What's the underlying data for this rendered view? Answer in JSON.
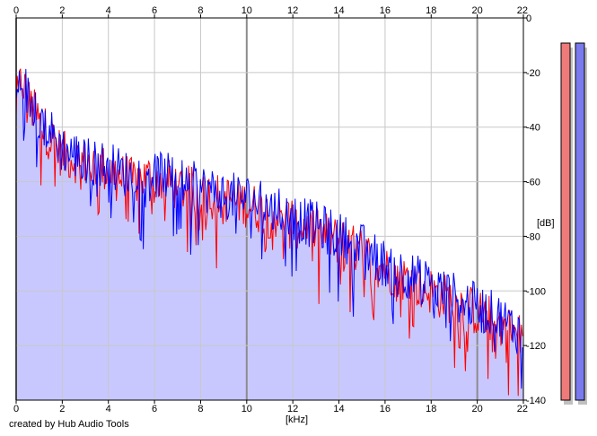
{
  "footer_text": "created by Hub Audio Tools",
  "colors": {
    "background": "#ffffff",
    "fill": "#c8c8ff",
    "left_channel": "#ff0000",
    "right_channel": "#0000ff",
    "grid_major": "#8c8c8c",
    "grid_minor": "#c8c8c8",
    "meter_left": "#ee7a7a",
    "meter_right": "#7a7aee"
  },
  "chart_data": {
    "type": "line",
    "title": "",
    "xlabel": "[kHz]",
    "ylabel": "[dB]",
    "xlim": [
      0,
      22
    ],
    "ylim": [
      -140,
      0
    ],
    "x_ticks": [
      0,
      2,
      4,
      6,
      8,
      10,
      12,
      14,
      16,
      18,
      20,
      22
    ],
    "y_ticks": [
      0,
      -20,
      -40,
      -60,
      -80,
      -100,
      -120,
      -140
    ],
    "x_tick_labels": [
      "0",
      "2",
      "4",
      "6",
      "8",
      "10",
      "12",
      "14",
      "16",
      "18",
      "20",
      "22"
    ],
    "y_tick_labels": [
      "0",
      "-20",
      "-40",
      "-60",
      "-80",
      "-100",
      "-120",
      "-140"
    ],
    "grid": true,
    "x": [
      0,
      0.25,
      0.5,
      1,
      1.5,
      2,
      3,
      4,
      5,
      6,
      7,
      8,
      9,
      10,
      11,
      12,
      13,
      14,
      15,
      16,
      17,
      18,
      19,
      20,
      21,
      22
    ],
    "series": [
      {
        "values": [
          -32,
          -22,
          -30,
          -38,
          -44,
          -50,
          -53,
          -56,
          -60,
          -58,
          -62,
          -64,
          -66,
          -68,
          -72,
          -74,
          -78,
          -82,
          -86,
          -92,
          -96,
          -100,
          -104,
          -108,
          -112,
          -118
        ]
      },
      {
        "values": [
          -30,
          -20,
          -29,
          -36,
          -42,
          -48,
          -52,
          -54,
          -58,
          -56,
          -60,
          -62,
          -65,
          -66,
          -70,
          -73,
          -76,
          -80,
          -84,
          -90,
          -94,
          -98,
          -102,
          -106,
          -110,
          -116
        ]
      }
    ],
    "level_meters": {
      "left": -140,
      "right": -140
    }
  }
}
